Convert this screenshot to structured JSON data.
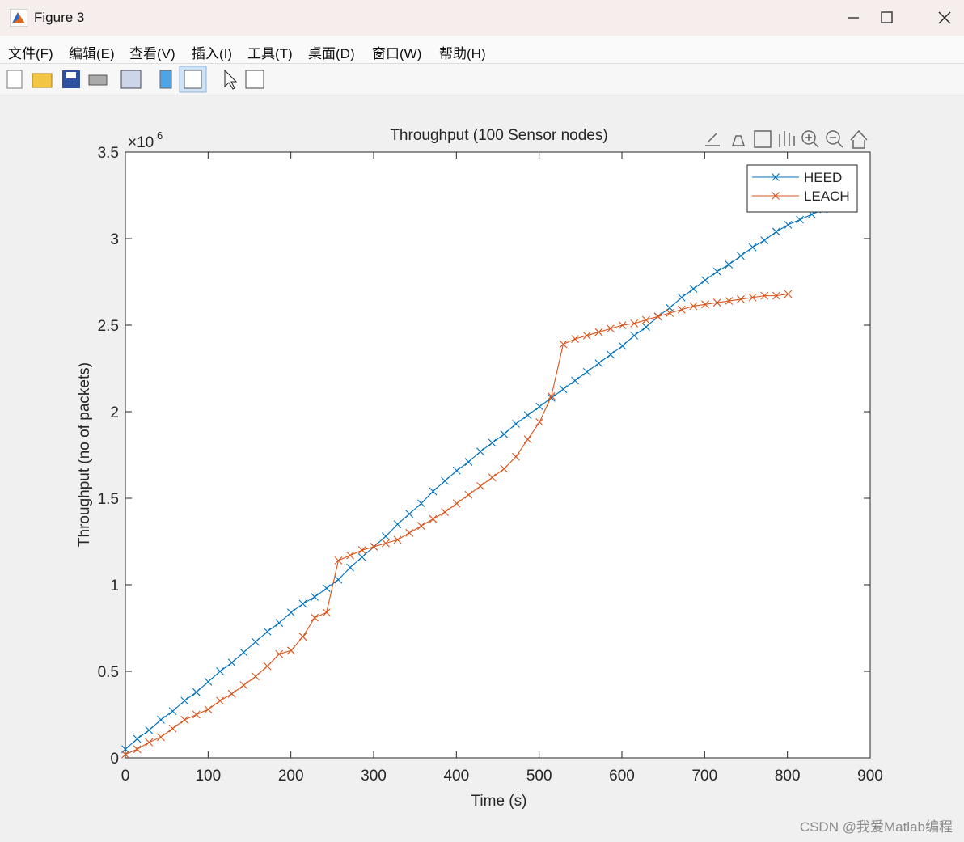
{
  "window": {
    "title": "Figure 3",
    "menu": [
      "文件(F)",
      "编辑(E)",
      "查看(V)",
      "插入(I)",
      "工具(T)",
      "桌面(D)",
      "窗口(W)",
      "帮助(H)"
    ],
    "watermark": "CSDN @我爱Matlab编程"
  },
  "chart_data": {
    "type": "line",
    "title": "Throughput (100 Sensor nodes)",
    "x_label": "Time (s)",
    "y_label": "Throughput (no of packets)",
    "y_multiplier": "×10",
    "y_multiplier_power": "6",
    "xlim": [
      0,
      900
    ],
    "xticks": [
      0,
      100,
      200,
      300,
      400,
      500,
      600,
      700,
      800,
      900
    ],
    "ylim": [
      0,
      3.5
    ],
    "yticks": [
      0,
      0.5,
      1,
      1.5,
      2,
      2.5,
      3,
      3.5
    ],
    "legend": "upper right",
    "grid": false,
    "series": [
      {
        "name": "HEED",
        "color": "#0072bd",
        "x": [
          0,
          14.3,
          28.6,
          42.9,
          57.2,
          71.5,
          85.8,
          100.1,
          114.4,
          128.7,
          143,
          157.3,
          171.6,
          185.9,
          200.2,
          214.5,
          228.8,
          243.1,
          257.4,
          271.7,
          286,
          300.3,
          314.6,
          328.9,
          343.2,
          357.5,
          371.8,
          386.1,
          400.4,
          414.7,
          429,
          443.3,
          457.6,
          471.9,
          486.2,
          500.5,
          514.8,
          529.1,
          543.4,
          557.7,
          572,
          586.3,
          600.6,
          614.9,
          629.2,
          643.5,
          657.8,
          672.1,
          686.4,
          700.7,
          715,
          729.3,
          743.6,
          757.9,
          772.2,
          786.5,
          800.8,
          815.1,
          829.4,
          843.7,
          858
        ],
        "values": [
          0.05,
          0.11,
          0.16,
          0.22,
          0.27,
          0.33,
          0.38,
          0.44,
          0.5,
          0.55,
          0.61,
          0.67,
          0.73,
          0.78,
          0.84,
          0.89,
          0.93,
          0.98,
          1.03,
          1.1,
          1.16,
          1.22,
          1.28,
          1.35,
          1.41,
          1.47,
          1.54,
          1.6,
          1.66,
          1.71,
          1.77,
          1.82,
          1.87,
          1.93,
          1.98,
          2.03,
          2.08,
          2.13,
          2.18,
          2.23,
          2.28,
          2.33,
          2.38,
          2.44,
          2.49,
          2.55,
          2.6,
          2.66,
          2.71,
          2.76,
          2.81,
          2.85,
          2.9,
          2.95,
          2.99,
          3.04,
          3.08,
          3.11,
          3.14,
          3.17,
          3.19
        ]
      },
      {
        "name": "LEACH",
        "color": "#d95319",
        "x": [
          0,
          14.3,
          28.6,
          42.9,
          57.2,
          71.5,
          85.8,
          100.1,
          114.4,
          128.7,
          143,
          157.3,
          171.6,
          185.9,
          200.2,
          214.5,
          228.8,
          243.1,
          257.4,
          271.7,
          286,
          300.3,
          314.6,
          328.9,
          343.2,
          357.5,
          371.8,
          386.1,
          400.4,
          414.7,
          429,
          443.3,
          457.6,
          471.9,
          486.2,
          500.5,
          514.8,
          529.1,
          543.4,
          557.7,
          572,
          586.3,
          600.6,
          614.9,
          629.2,
          643.5,
          657.8,
          672.1,
          686.4,
          700.7,
          715,
          729.3,
          743.6,
          757.9,
          772.2,
          786.5,
          800.8
        ],
        "values": [
          0.02,
          0.05,
          0.09,
          0.12,
          0.17,
          0.22,
          0.25,
          0.28,
          0.33,
          0.37,
          0.42,
          0.47,
          0.53,
          0.6,
          0.62,
          0.7,
          0.81,
          0.84,
          1.14,
          1.17,
          1.2,
          1.22,
          1.24,
          1.26,
          1.3,
          1.34,
          1.38,
          1.42,
          1.47,
          1.52,
          1.57,
          1.62,
          1.67,
          1.74,
          1.84,
          1.94,
          2.09,
          2.39,
          2.42,
          2.44,
          2.46,
          2.48,
          2.5,
          2.51,
          2.53,
          2.55,
          2.57,
          2.59,
          2.61,
          2.62,
          2.63,
          2.64,
          2.65,
          2.66,
          2.67,
          2.67,
          2.68
        ]
      }
    ]
  }
}
